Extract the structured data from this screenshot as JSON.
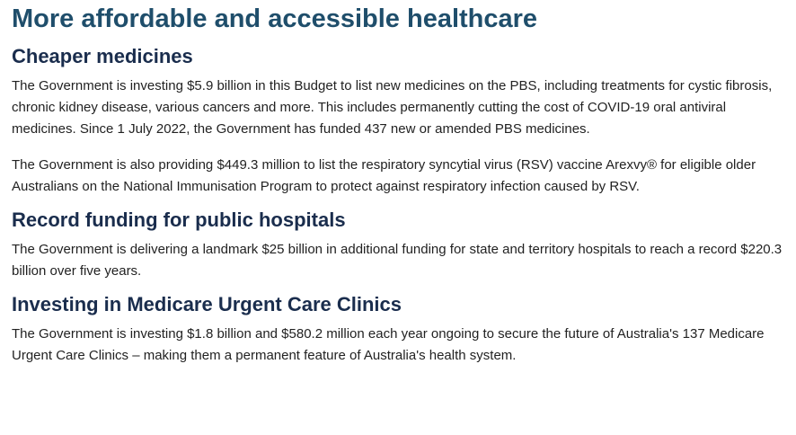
{
  "title": "More affordable and accessible healthcare",
  "sections": [
    {
      "heading": "Cheaper medicines",
      "paragraphs": [
        "The Government is investing $5.9 billion in this Budget to list new medicines on the PBS, including treatments for cystic fibrosis, chronic kidney disease, various cancers and more. This includes permanently cutting the cost of COVID-19 oral antiviral medicines. Since 1 July 2022, the Government has funded 437 new or amended PBS medicines.",
        "The Government is also providing $449.3 million to list the respiratory syncytial virus (RSV) vaccine Arexvy® for eligible older Australians on the National Immunisation Program to protect against respiratory infection caused by RSV."
      ]
    },
    {
      "heading": "Record funding for public hospitals",
      "paragraphs": [
        "The Government is delivering a landmark $25 billion in additional funding for state and territory hospitals to reach a record $220.3 billion over five years."
      ]
    },
    {
      "heading": "Investing in Medicare Urgent Care Clinics",
      "paragraphs": [
        "The Government is investing $1.8 billion and $580.2 million each year ongoing to secure the future of Australia's 137 Medicare Urgent Care Clinics – making them a permanent feature of Australia's health system."
      ]
    }
  ]
}
